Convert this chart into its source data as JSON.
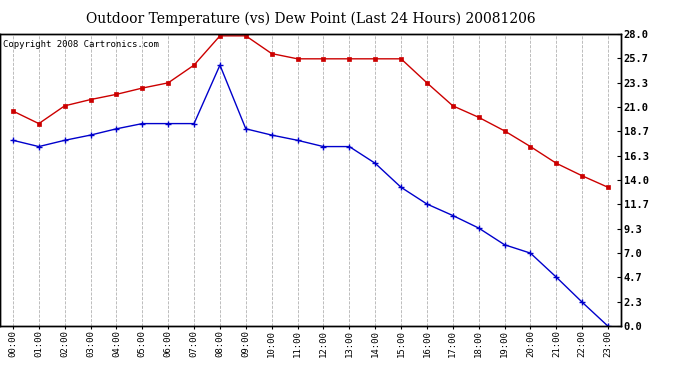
{
  "title": "Outdoor Temperature (vs) Dew Point (Last 24 Hours) 20081206",
  "copyright": "Copyright 2008 Cartronics.com",
  "x_labels": [
    "00:00",
    "01:00",
    "02:00",
    "03:00",
    "04:00",
    "05:00",
    "06:00",
    "07:00",
    "08:00",
    "09:00",
    "10:00",
    "11:00",
    "12:00",
    "13:00",
    "14:00",
    "15:00",
    "16:00",
    "17:00",
    "18:00",
    "19:00",
    "20:00",
    "21:00",
    "22:00",
    "23:00"
  ],
  "temp_data": [
    20.6,
    19.4,
    21.1,
    21.7,
    22.2,
    22.8,
    23.3,
    25.0,
    27.8,
    27.8,
    26.1,
    25.6,
    25.6,
    25.6,
    25.6,
    25.6,
    23.3,
    21.1,
    20.0,
    18.7,
    17.2,
    15.6,
    14.4,
    13.3
  ],
  "dew_data": [
    17.8,
    17.2,
    17.8,
    18.3,
    18.9,
    19.4,
    19.4,
    19.4,
    25.0,
    18.9,
    18.3,
    17.8,
    17.2,
    17.2,
    15.6,
    13.3,
    11.7,
    10.6,
    9.4,
    7.8,
    7.0,
    4.7,
    2.3,
    0.0
  ],
  "temp_color": "#cc0000",
  "dew_color": "#0000cc",
  "y_ticks": [
    0.0,
    2.3,
    4.7,
    7.0,
    9.3,
    11.7,
    14.0,
    16.3,
    18.7,
    21.0,
    23.3,
    25.7,
    28.0
  ],
  "y_min": 0.0,
  "y_max": 28.0,
  "bg_color": "#ffffff",
  "grid_color": "#aaaaaa",
  "title_fontsize": 10,
  "copyright_fontsize": 6.5
}
